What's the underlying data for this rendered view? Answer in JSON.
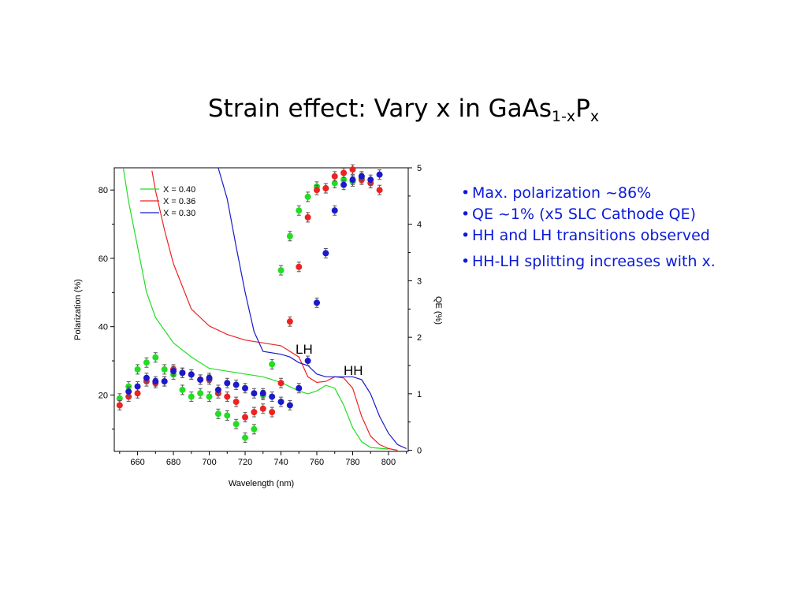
{
  "slide": {
    "title_main": "Strain effect: Vary x in GaAs",
    "title_sub": "1-x",
    "title_p": "P",
    "title_sub2": "x"
  },
  "bullets": [
    "Max. polarization ~86%",
    "QE ~1% (x5 SLC Cathode QE)",
    "HH and LH transitions observed",
    "HH-LH splitting increases with x."
  ],
  "chart_data": {
    "type": "scatter",
    "xlabel": "Wavelength (nm)",
    "ylabel": "Polarization (%)",
    "y2label": "QE (%)",
    "xlim": [
      647,
      811
    ],
    "ylim": [
      3.5,
      86.5
    ],
    "y2lim": [
      -0.02,
      5.0
    ],
    "xticks": [
      660,
      680,
      700,
      720,
      740,
      760,
      780,
      800
    ],
    "yticks": [
      20,
      40,
      60,
      80
    ],
    "y2ticks": [
      0,
      1,
      2,
      3,
      4,
      5
    ],
    "legend": {
      "placement": "top-left",
      "entries": [
        "X = 0.40",
        "X = 0.36",
        "X = 0.30"
      ]
    },
    "annotations": [
      {
        "text": "LH",
        "x": 755,
        "y": 33
      },
      {
        "text": "HH",
        "x": 777,
        "y": 27
      }
    ],
    "qe_series": [
      {
        "name": "X = 0.40",
        "color": "#22dd22",
        "axis": "QE",
        "points": [
          [
            652,
            5.0
          ],
          [
            655,
            4.4
          ],
          [
            660,
            3.6
          ],
          [
            665,
            2.8
          ],
          [
            670,
            2.35
          ],
          [
            680,
            1.9
          ],
          [
            690,
            1.65
          ],
          [
            700,
            1.45
          ],
          [
            710,
            1.4
          ],
          [
            720,
            1.35
          ],
          [
            730,
            1.3
          ],
          [
            740,
            1.2
          ],
          [
            750,
            1.05
          ],
          [
            755,
            1.0
          ],
          [
            760,
            1.05
          ],
          [
            765,
            1.15
          ],
          [
            770,
            1.1
          ],
          [
            775,
            0.8
          ],
          [
            780,
            0.4
          ],
          [
            785,
            0.15
          ],
          [
            790,
            0.05
          ],
          [
            800,
            0.02
          ]
        ]
      },
      {
        "name": "X = 0.36",
        "color": "#ee2222",
        "axis": "QE",
        "points": [
          [
            668,
            4.95
          ],
          [
            670,
            4.6
          ],
          [
            675,
            3.9
          ],
          [
            680,
            3.3
          ],
          [
            690,
            2.5
          ],
          [
            700,
            2.2
          ],
          [
            710,
            2.05
          ],
          [
            720,
            1.95
          ],
          [
            730,
            1.9
          ],
          [
            740,
            1.85
          ],
          [
            750,
            1.65
          ],
          [
            755,
            1.3
          ],
          [
            760,
            1.2
          ],
          [
            765,
            1.22
          ],
          [
            770,
            1.3
          ],
          [
            775,
            1.28
          ],
          [
            780,
            1.1
          ],
          [
            785,
            0.6
          ],
          [
            790,
            0.25
          ],
          [
            795,
            0.1
          ],
          [
            800,
            0.03
          ],
          [
            805,
            0.0
          ]
        ]
      },
      {
        "name": "X = 0.30",
        "color": "#1a1acc",
        "axis": "QE",
        "points": [
          [
            705,
            5.0
          ],
          [
            710,
            4.45
          ],
          [
            715,
            3.6
          ],
          [
            720,
            2.8
          ],
          [
            725,
            2.1
          ],
          [
            730,
            1.75
          ],
          [
            740,
            1.7
          ],
          [
            745,
            1.65
          ],
          [
            750,
            1.55
          ],
          [
            755,
            1.5
          ],
          [
            760,
            1.35
          ],
          [
            765,
            1.3
          ],
          [
            770,
            1.3
          ],
          [
            775,
            1.3
          ],
          [
            780,
            1.3
          ],
          [
            785,
            1.25
          ],
          [
            790,
            1.0
          ],
          [
            795,
            0.6
          ],
          [
            800,
            0.3
          ],
          [
            805,
            0.1
          ],
          [
            810,
            0.03
          ]
        ]
      }
    ],
    "polarization_series": [
      {
        "name": "X = 0.40",
        "color": "#22dd22",
        "axis": "Polarization",
        "points": [
          [
            650,
            19
          ],
          [
            655,
            22.5
          ],
          [
            660,
            27.5
          ],
          [
            665,
            29.5
          ],
          [
            670,
            31
          ],
          [
            675,
            27.5
          ],
          [
            680,
            26
          ],
          [
            685,
            21.5
          ],
          [
            690,
            19.5
          ],
          [
            695,
            20.5
          ],
          [
            700,
            19.5
          ],
          [
            705,
            14.5
          ],
          [
            710,
            14
          ],
          [
            715,
            11.5
          ],
          [
            720,
            7.5
          ],
          [
            725,
            10
          ],
          [
            730,
            20
          ],
          [
            735,
            29
          ],
          [
            740,
            56.5
          ],
          [
            745,
            66.5
          ],
          [
            750,
            74
          ],
          [
            755,
            78
          ],
          [
            760,
            81
          ],
          [
            765,
            80.5
          ],
          [
            770,
            82
          ],
          [
            775,
            83
          ],
          [
            780,
            82.5
          ],
          [
            785,
            83.5
          ]
        ]
      },
      {
        "name": "X = 0.36",
        "color": "#ee2222",
        "axis": "Polarization",
        "points": [
          [
            650,
            17
          ],
          [
            655,
            19.5
          ],
          [
            660,
            20.5
          ],
          [
            665,
            24
          ],
          [
            670,
            23.5
          ],
          [
            675,
            24
          ],
          [
            680,
            27.5
          ],
          [
            685,
            26.5
          ],
          [
            690,
            26
          ],
          [
            695,
            24.5
          ],
          [
            700,
            24.5
          ],
          [
            705,
            20.5
          ],
          [
            710,
            19.5
          ],
          [
            715,
            18
          ],
          [
            720,
            13.5
          ],
          [
            725,
            15
          ],
          [
            730,
            16
          ],
          [
            735,
            15
          ],
          [
            740,
            23.5
          ],
          [
            745,
            41.5
          ],
          [
            750,
            57.5
          ],
          [
            755,
            72
          ],
          [
            760,
            80
          ],
          [
            765,
            80.5
          ],
          [
            770,
            84
          ],
          [
            775,
            85
          ],
          [
            780,
            86
          ],
          [
            785,
            83
          ],
          [
            790,
            82
          ],
          [
            795,
            80
          ]
        ]
      },
      {
        "name": "X = 0.30",
        "color": "#1a1acc",
        "axis": "Polarization",
        "points": [
          [
            655,
            21
          ],
          [
            660,
            22.5
          ],
          [
            665,
            25
          ],
          [
            670,
            24
          ],
          [
            675,
            24
          ],
          [
            680,
            27
          ],
          [
            685,
            26.5
          ],
          [
            690,
            26
          ],
          [
            695,
            24.5
          ],
          [
            700,
            25
          ],
          [
            705,
            21.5
          ],
          [
            710,
            23.5
          ],
          [
            715,
            23
          ],
          [
            720,
            22
          ],
          [
            725,
            20.5
          ],
          [
            730,
            20.5
          ],
          [
            735,
            19.5
          ],
          [
            740,
            18
          ],
          [
            745,
            17
          ],
          [
            750,
            22
          ],
          [
            755,
            30
          ],
          [
            760,
            47
          ],
          [
            765,
            61.5
          ],
          [
            770,
            74
          ],
          [
            775,
            81.5
          ],
          [
            780,
            83
          ],
          [
            785,
            84
          ],
          [
            790,
            83
          ],
          [
            795,
            84.5
          ]
        ]
      }
    ]
  }
}
